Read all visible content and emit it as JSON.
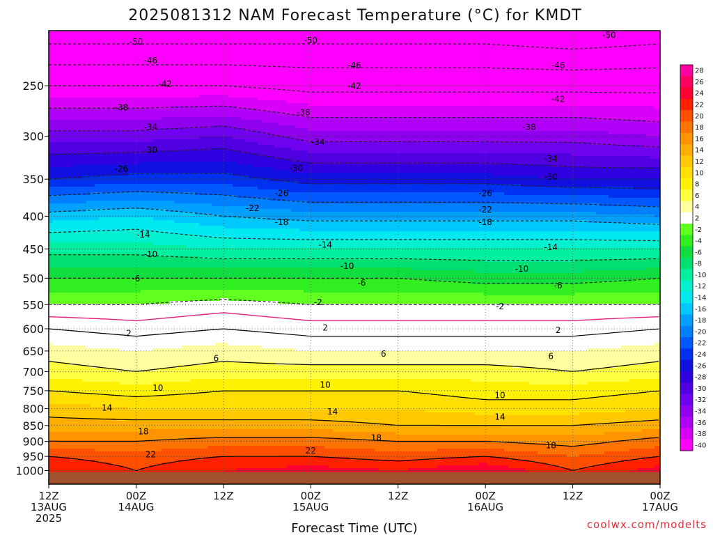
{
  "chart_data": {
    "type": "heatmap",
    "title": "2025081312 NAM Forecast Temperature (°C) for KMDT",
    "xlabel": "Forecast Time (UTC)",
    "ylabel": "",
    "credit": "coolwx.com/modelts",
    "y_scale": "log-pressure",
    "ylim": [
      1050,
      205
    ],
    "xlim_hours": [
      0,
      84
    ],
    "y_ticks": [
      250,
      300,
      350,
      400,
      450,
      500,
      550,
      600,
      650,
      700,
      750,
      800,
      850,
      900,
      950,
      1000
    ],
    "x_ticks": [
      {
        "hour": 0,
        "line1": "12Z",
        "line2": "13AUG",
        "line3": "2025"
      },
      {
        "hour": 12,
        "line1": "00Z",
        "line2": "14AUG",
        "line3": ""
      },
      {
        "hour": 24,
        "line1": "12Z",
        "line2": "",
        "line3": ""
      },
      {
        "hour": 36,
        "line1": "00Z",
        "line2": "15AUG",
        "line3": ""
      },
      {
        "hour": 48,
        "line1": "12Z",
        "line2": "",
        "line3": ""
      },
      {
        "hour": 60,
        "line1": "00Z",
        "line2": "16AUG",
        "line3": ""
      },
      {
        "hour": 72,
        "line1": "12Z",
        "line2": "",
        "line3": ""
      },
      {
        "hour": 84,
        "line1": "00Z",
        "line2": "17AUG",
        "line3": ""
      }
    ],
    "grid": true,
    "surface_pressure_hpa": 1000,
    "colorbar": {
      "ticks": [
        "28",
        "26",
        "24",
        "22",
        "20",
        "18",
        "16",
        "14",
        "12",
        "10",
        "8",
        "6",
        "4",
        "2",
        "-2",
        "-4",
        "-6",
        "-8",
        "-10",
        "-12",
        "-14",
        "-16",
        "-18",
        "-20",
        "-22",
        "-24",
        "-26",
        "-28",
        "-30",
        "-32",
        "-34",
        "-36",
        "-38",
        "-40"
      ],
      "colors": [
        "#ff00a0",
        "#ff0060",
        "#ff0030",
        "#ff2000",
        "#ff5000",
        "#ff7400",
        "#ff9400",
        "#ffae00",
        "#ffc800",
        "#ffe000",
        "#fff200",
        "#ffff40",
        "#ffffa0",
        "#ffffff",
        "#60ff20",
        "#30ee20",
        "#10dd40",
        "#00e070",
        "#00f0a0",
        "#00f0d0",
        "#00e8f0",
        "#00c8ff",
        "#00a0ff",
        "#0080ff",
        "#0058ff",
        "#0030f0",
        "#1010e0",
        "#3000e0",
        "#5000e0",
        "#7000f0",
        "#9000f0",
        "#b000f8",
        "#d800f8",
        "#ff00ff"
      ]
    },
    "series": [
      {
        "pressures": [
          1000,
          950,
          900,
          850,
          800,
          750,
          700,
          650,
          600,
          550,
          500,
          450,
          400,
          350,
          300,
          250,
          215
        ],
        "hour": 0,
        "temperature_c": [
          24,
          22,
          18,
          15,
          13,
          10,
          7,
          5,
          2,
          -2,
          -6,
          -11,
          -17,
          -26,
          -33,
          -42,
          -50
        ]
      },
      {
        "pressures": [
          1000,
          950,
          900,
          850,
          800,
          750,
          700,
          650,
          600,
          550,
          500,
          450,
          400,
          350,
          300,
          250,
          215
        ],
        "hour": 12,
        "temperature_c": [
          22,
          21,
          18,
          15,
          12,
          9,
          6,
          4,
          1,
          -2,
          -6,
          -11,
          -16,
          -25,
          -33,
          -42,
          -50
        ]
      },
      {
        "pressures": [
          1000,
          950,
          900,
          850,
          800,
          750,
          700,
          650,
          600,
          550,
          500,
          450,
          400,
          350,
          300,
          250,
          215
        ],
        "hour": 24,
        "temperature_c": [
          24,
          22,
          19,
          15,
          12,
          10,
          7,
          5,
          2,
          -1,
          -6,
          -12,
          -18,
          -25,
          -32,
          -42,
          -50
        ]
      },
      {
        "pressures": [
          1000,
          950,
          900,
          850,
          800,
          750,
          700,
          650,
          600,
          550,
          500,
          450,
          400,
          350,
          300,
          250,
          215
        ],
        "hour": 36,
        "temperature_c": [
          25,
          22,
          19,
          15,
          12,
          10,
          7,
          4,
          1,
          -2,
          -6,
          -12,
          -19,
          -27,
          -35,
          -43,
          -50
        ]
      },
      {
        "pressures": [
          1000,
          950,
          900,
          850,
          800,
          750,
          700,
          650,
          600,
          550,
          500,
          450,
          400,
          350,
          300,
          250,
          215
        ],
        "hour": 48,
        "temperature_c": [
          24,
          21,
          18,
          14,
          12,
          10,
          7,
          4,
          1,
          -2,
          -6,
          -12,
          -19,
          -27,
          -35,
          -43,
          -50
        ]
      },
      {
        "pressures": [
          1000,
          950,
          900,
          850,
          800,
          750,
          700,
          650,
          600,
          550,
          500,
          450,
          400,
          350,
          300,
          250,
          215
        ],
        "hour": 60,
        "temperature_c": [
          26,
          22,
          18,
          14,
          11,
          9,
          7,
          4,
          1,
          -2,
          -7,
          -12,
          -19,
          -27,
          -35,
          -43,
          -50
        ]
      },
      {
        "pressures": [
          1000,
          950,
          900,
          850,
          800,
          750,
          700,
          650,
          600,
          550,
          500,
          450,
          400,
          350,
          300,
          250,
          215
        ],
        "hour": 72,
        "temperature_c": [
          22,
          20,
          17,
          14,
          11,
          9,
          6,
          4,
          1,
          -2,
          -7,
          -12,
          -19,
          -28,
          -35,
          -43,
          -51
        ]
      },
      {
        "pressures": [
          1000,
          950,
          900,
          850,
          800,
          750,
          700,
          650,
          600,
          550,
          500,
          450,
          400,
          350,
          300,
          250,
          215
        ],
        "hour": 84,
        "temperature_c": [
          25,
          22,
          19,
          15,
          12,
          10,
          7,
          5,
          2,
          -2,
          -6,
          -12,
          -20,
          -28,
          -36,
          -43,
          -50
        ]
      }
    ],
    "contour_labels": [
      {
        "text": "-50",
        "hour": 12,
        "p": 213
      },
      {
        "text": "-50",
        "hour": 36,
        "p": 212
      },
      {
        "text": "-50",
        "hour": 77,
        "p": 208
      },
      {
        "text": "-46",
        "hour": 14,
        "p": 228
      },
      {
        "text": "-46",
        "hour": 42,
        "p": 232
      },
      {
        "text": "-46",
        "hour": 70,
        "p": 232
      },
      {
        "text": "-42",
        "hour": 16,
        "p": 248
      },
      {
        "text": "-42",
        "hour": 42,
        "p": 250
      },
      {
        "text": "-42",
        "hour": 70,
        "p": 262
      },
      {
        "text": "-38",
        "hour": 10,
        "p": 270
      },
      {
        "text": "-38",
        "hour": 35,
        "p": 275
      },
      {
        "text": "-38",
        "hour": 66,
        "p": 290
      },
      {
        "text": "-34",
        "hour": 14,
        "p": 290
      },
      {
        "text": "-34",
        "hour": 37,
        "p": 306
      },
      {
        "text": "-34",
        "hour": 69,
        "p": 325
      },
      {
        "text": "-30",
        "hour": 14,
        "p": 315
      },
      {
        "text": "-30",
        "hour": 34,
        "p": 336
      },
      {
        "text": "-30",
        "hour": 69,
        "p": 347
      },
      {
        "text": "-26",
        "hour": 10,
        "p": 337
      },
      {
        "text": "-26",
        "hour": 32,
        "p": 368
      },
      {
        "text": "-26",
        "hour": 60,
        "p": 368
      },
      {
        "text": "-22",
        "hour": 28,
        "p": 388
      },
      {
        "text": "-22",
        "hour": 60,
        "p": 390
      },
      {
        "text": "-18",
        "hour": 32,
        "p": 408
      },
      {
        "text": "-18",
        "hour": 60,
        "p": 408
      },
      {
        "text": "-14",
        "hour": 13,
        "p": 427
      },
      {
        "text": "-14",
        "hour": 38,
        "p": 443
      },
      {
        "text": "-14",
        "hour": 69,
        "p": 447
      },
      {
        "text": "-10",
        "hour": 14,
        "p": 458
      },
      {
        "text": "-10",
        "hour": 41,
        "p": 478
      },
      {
        "text": "-10",
        "hour": 65,
        "p": 483
      },
      {
        "text": "-6",
        "hour": 12,
        "p": 500
      },
      {
        "text": "-6",
        "hour": 43,
        "p": 508
      },
      {
        "text": "-6",
        "hour": 70,
        "p": 513
      },
      {
        "text": "-2",
        "hour": 37,
        "p": 545
      },
      {
        "text": "-2",
        "hour": 62,
        "p": 553
      },
      {
        "text": "2",
        "hour": 11,
        "p": 609
      },
      {
        "text": "2",
        "hour": 38,
        "p": 597
      },
      {
        "text": "2",
        "hour": 70,
        "p": 602
      },
      {
        "text": "6",
        "hour": 23,
        "p": 667
      },
      {
        "text": "6",
        "hour": 46,
        "p": 656
      },
      {
        "text": "6",
        "hour": 69,
        "p": 662
      },
      {
        "text": "10",
        "hour": 15,
        "p": 742
      },
      {
        "text": "10",
        "hour": 38,
        "p": 733
      },
      {
        "text": "10",
        "hour": 62,
        "p": 762
      },
      {
        "text": "14",
        "hour": 8,
        "p": 797
      },
      {
        "text": "14",
        "hour": 39,
        "p": 808
      },
      {
        "text": "14",
        "hour": 62,
        "p": 823
      },
      {
        "text": "18",
        "hour": 13,
        "p": 868
      },
      {
        "text": "18",
        "hour": 45,
        "p": 888
      },
      {
        "text": "18",
        "hour": 69,
        "p": 912
      },
      {
        "text": "22",
        "hour": 14,
        "p": 943
      },
      {
        "text": "22",
        "hour": 36,
        "p": 930
      }
    ]
  }
}
